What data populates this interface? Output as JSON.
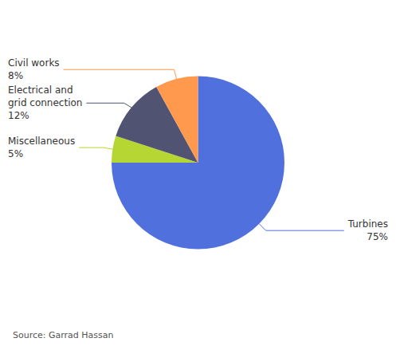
{
  "chart_data": {
    "type": "pie",
    "categories": [
      "Turbines",
      "Miscellaneous",
      "Electrical and\ngrid connection",
      "Civil works"
    ],
    "values": [
      75,
      5,
      12,
      8
    ],
    "value_labels": [
      "75%",
      "5%",
      "12%",
      "8%"
    ],
    "data_labels": true,
    "legend": false,
    "annotations": [
      "Source: Garrad Hassan"
    ]
  }
}
